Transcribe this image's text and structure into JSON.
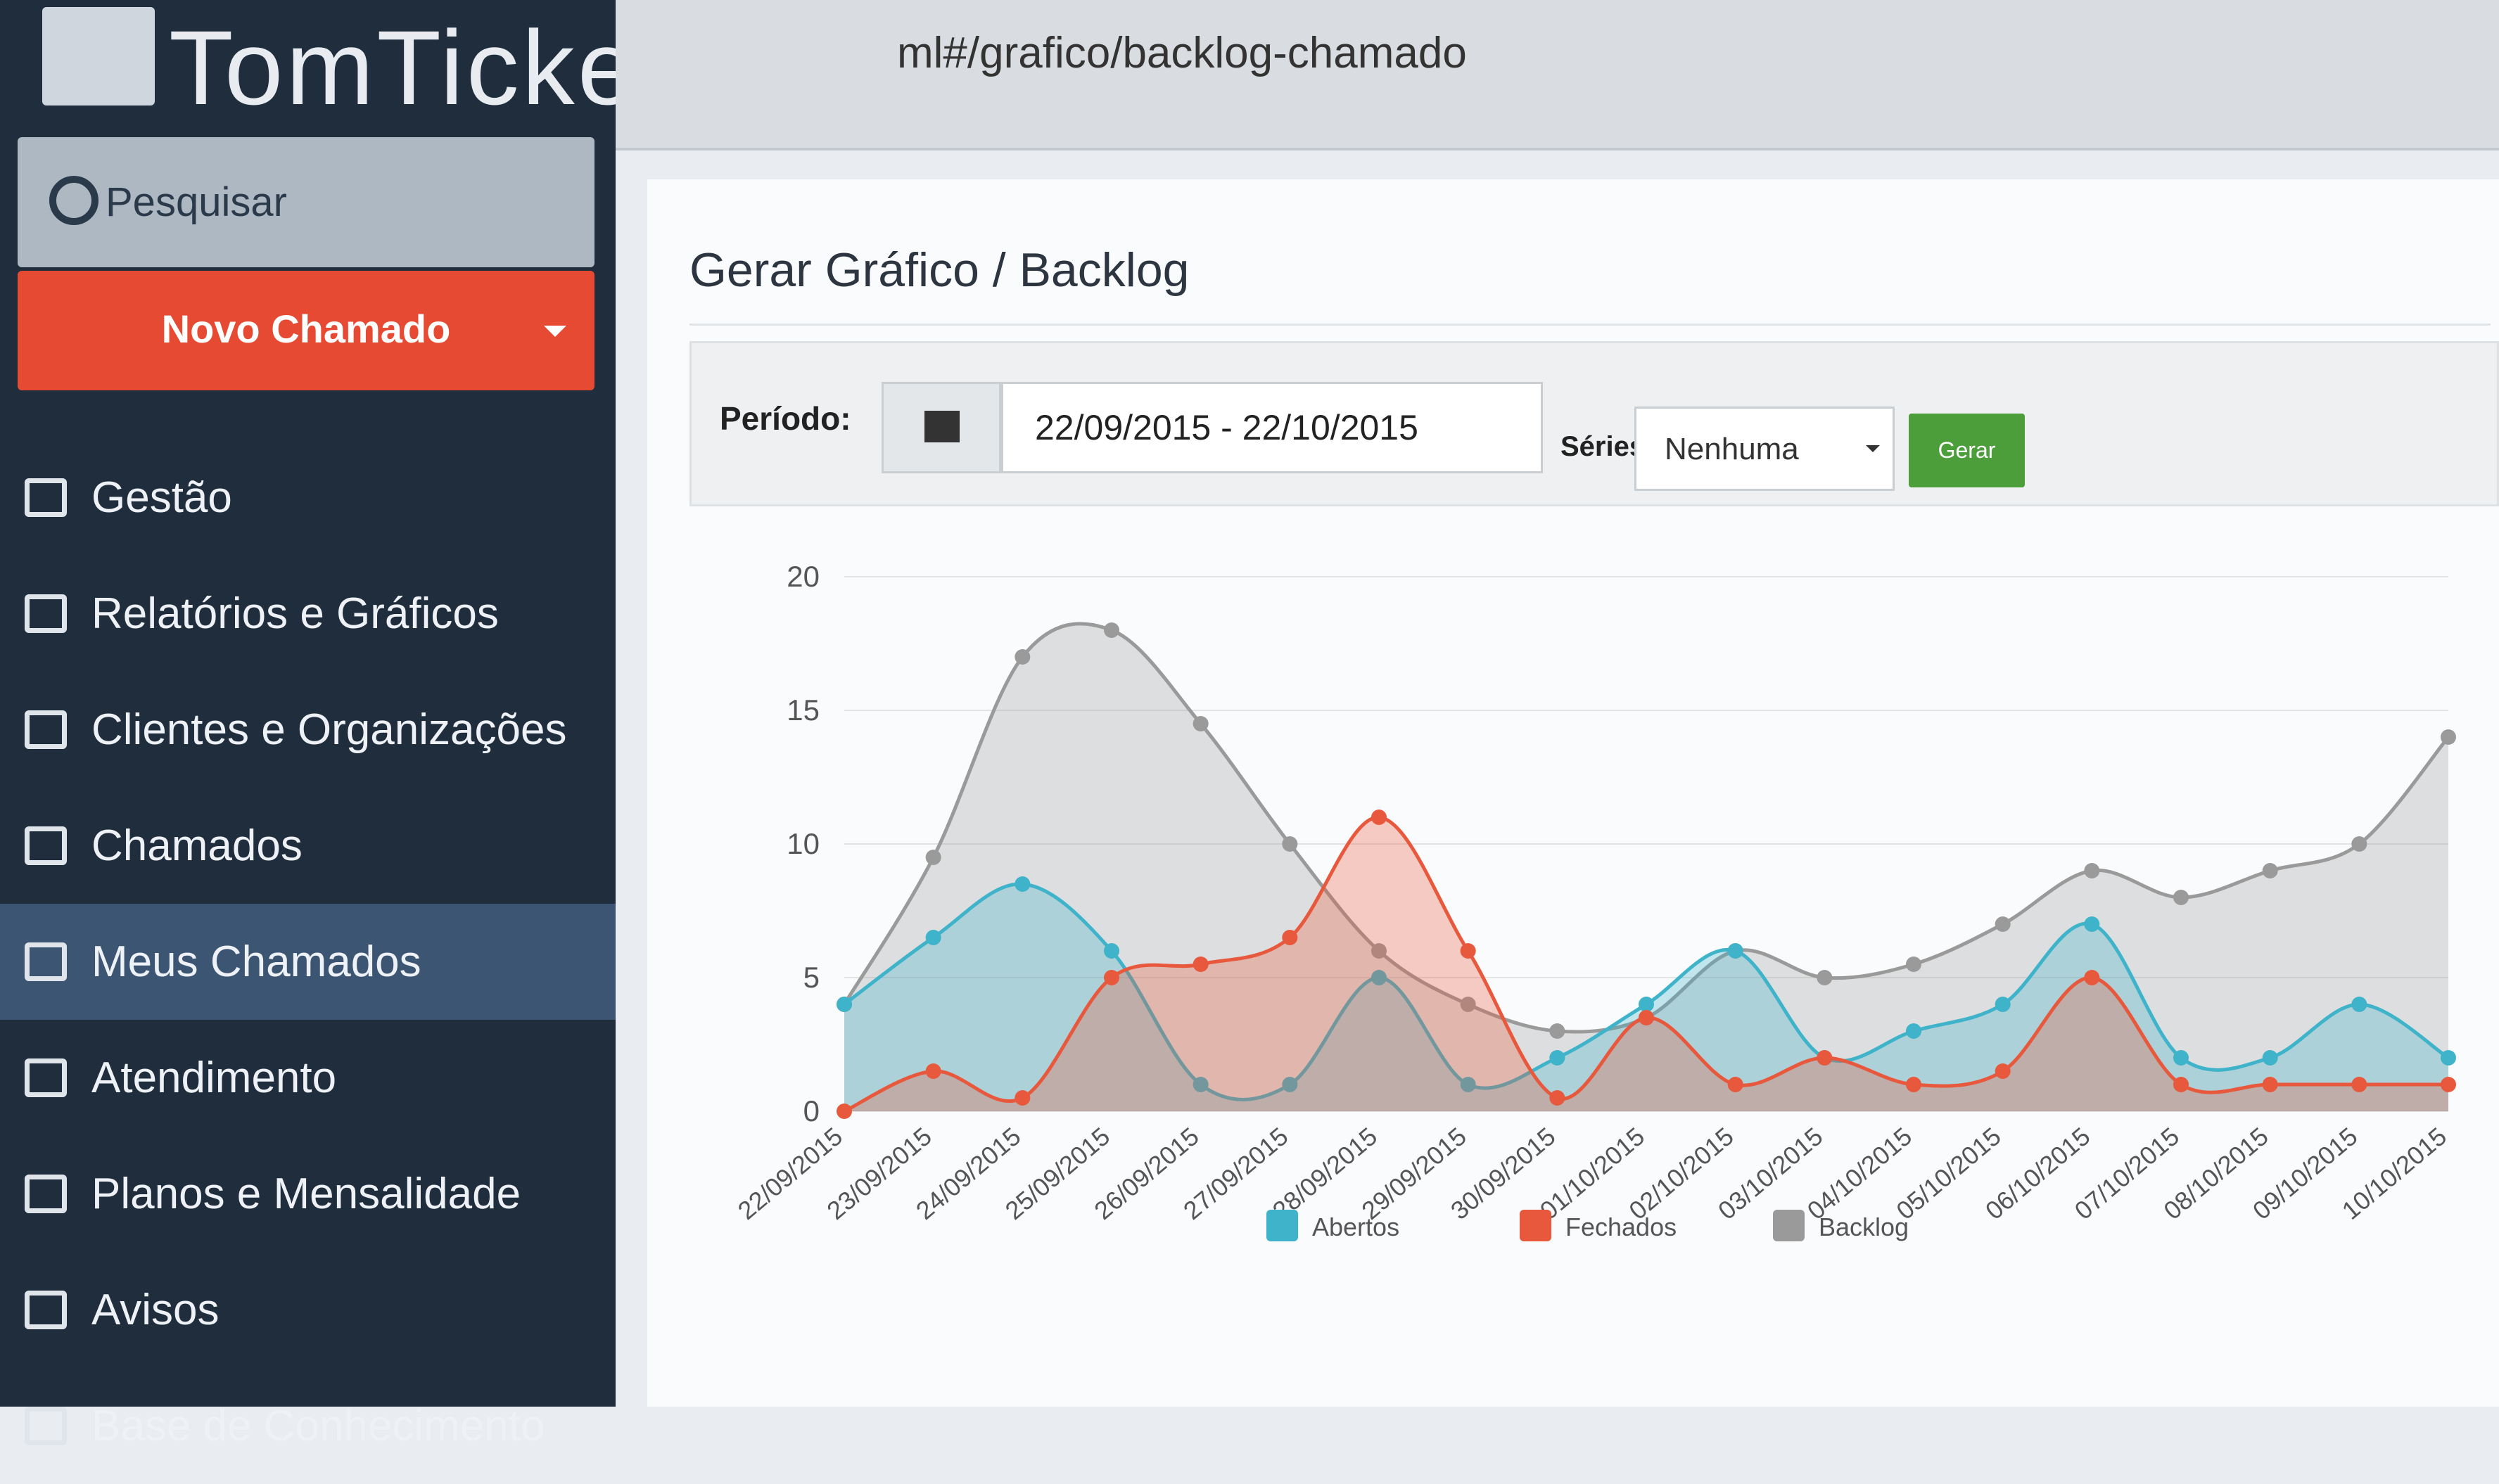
{
  "browser": {
    "url": "ml#/grafico/backlog-chamado"
  },
  "sidebar": {
    "logo": "TomTicket",
    "search": "Pesquisar",
    "new_button": "Novo Chamado",
    "menu": [
      "Gestão",
      "Relatórios e Gráficos",
      "Clientes e Organizações",
      "Chamados",
      "Meus Chamados",
      "Atendimento",
      "Planos e Mensalidade",
      "Avisos",
      "Base de Conhecimento"
    ],
    "active_item": 4
  },
  "page": {
    "title": "Gerar Gráfico / Backlog",
    "period_label": "Período:",
    "period": "22/09/2015 - 22/10/2015",
    "series_label": "Séries:",
    "series_value": "Nenhuma",
    "button": "Gerar"
  },
  "chart_data": {
    "type": "area",
    "categories": [
      "22/09/2015",
      "23/09/2015",
      "24/09/2015",
      "25/09/2015",
      "26/09/2015",
      "27/09/2015",
      "28/09/2015",
      "29/09/2015",
      "30/09/2015",
      "01/10/2015",
      "02/10/2015",
      "03/10/2015",
      "04/10/2015",
      "05/10/2015",
      "06/10/2015",
      "07/10/2015",
      "08/10/2015",
      "09/10/2015",
      "10/10/2015"
    ],
    "series": [
      {
        "name": "Backlog",
        "color": "#9a9a9a",
        "values": [
          4,
          9.5,
          17,
          18,
          14.5,
          10,
          6,
          4,
          3,
          3.5,
          6,
          5,
          5.5,
          7,
          9,
          8,
          9,
          10,
          14
        ]
      },
      {
        "name": "Abertos",
        "color": "#3fb3c9",
        "values": [
          4,
          6.5,
          8.5,
          6,
          1,
          1,
          5,
          1,
          2,
          4,
          6,
          2,
          3,
          4,
          7,
          2,
          2,
          4,
          2
        ]
      },
      {
        "name": "Fechados",
        "color": "#e8583c",
        "values": [
          0,
          1.5,
          0.5,
          5,
          5.5,
          6.5,
          11,
          6,
          0.5,
          3.5,
          1,
          2,
          1,
          1.5,
          5,
          1,
          1,
          1,
          1
        ]
      }
    ],
    "legend_order": [
      1,
      2,
      0
    ],
    "ylim": [
      0,
      20
    ],
    "yticks": [
      0,
      5,
      10,
      15,
      20
    ],
    "grid": true
  }
}
